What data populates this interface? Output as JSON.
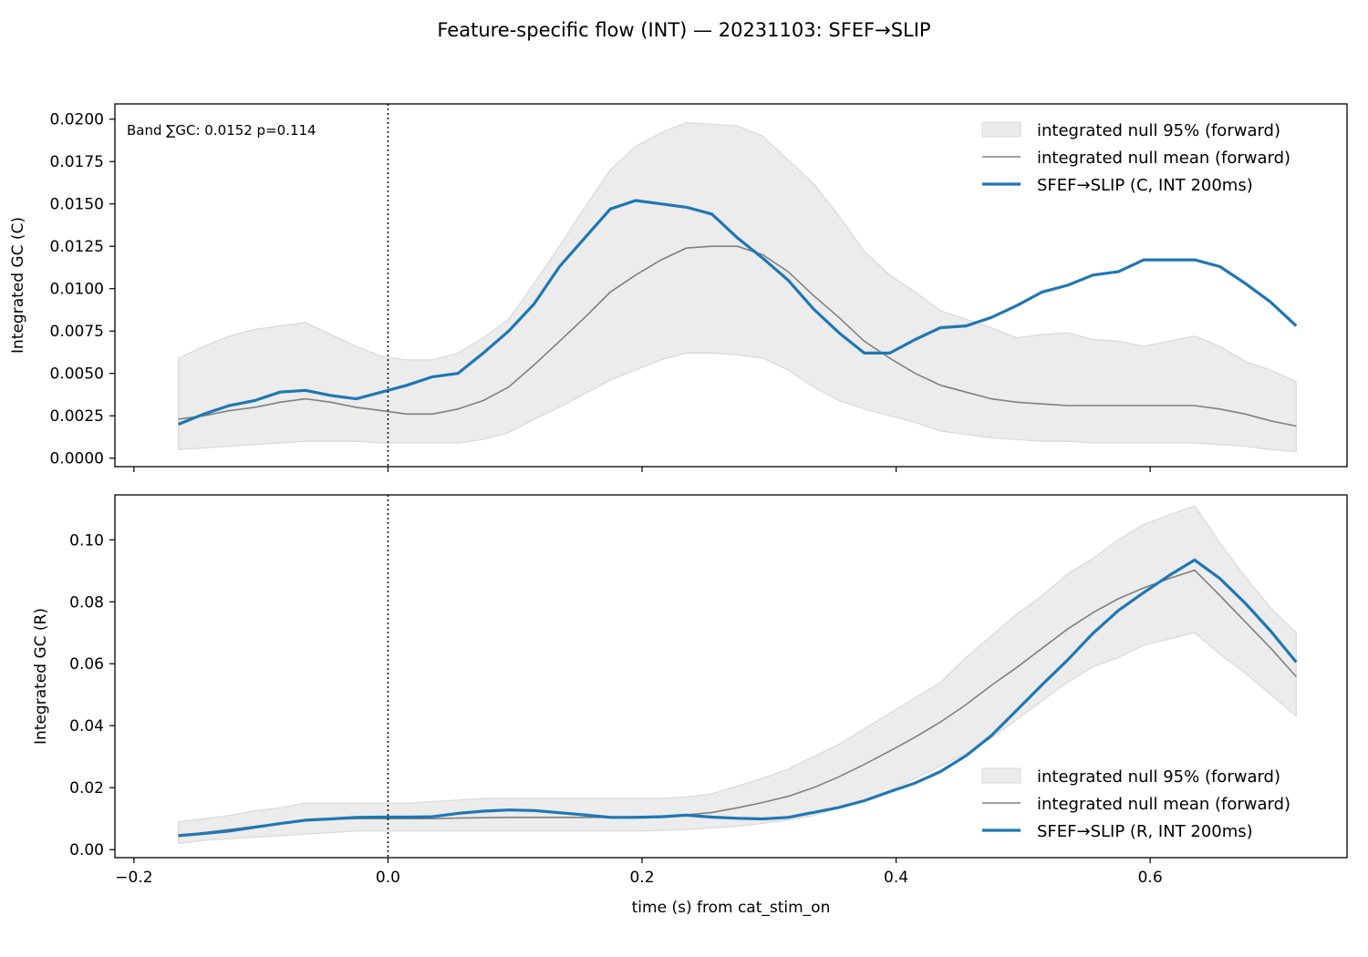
{
  "title": "Feature-specific flow (INT) — 20231103: SFEF→SLIP",
  "colors": {
    "band_fill": "#ececec",
    "band_edge": "#d9d9d9",
    "null_mean": "#808080",
    "observed": "#1f77b4"
  },
  "chart_data": [
    {
      "type": "line",
      "panel": "top",
      "ylabel": "Integrated GC (C)",
      "xlim": [
        -0.215,
        0.755
      ],
      "ylim": [
        -0.0005,
        0.0209
      ],
      "yticks": [
        0.0,
        0.0025,
        0.005,
        0.0075,
        0.01,
        0.0125,
        0.015,
        0.0175,
        0.02
      ],
      "ytick_labels": [
        "0.0000",
        "0.0025",
        "0.0050",
        "0.0075",
        "0.0100",
        "0.0125",
        "0.0150",
        "0.0175",
        "0.0200"
      ],
      "xticks": [
        -0.2,
        0.0,
        0.2,
        0.4,
        0.6
      ],
      "annotation": "Band ∑GC: 0.0152  p=0.114",
      "legend_position": "upper right",
      "legend": [
        "integrated null 95% (forward)",
        "integrated null mean (forward)",
        "SFEF→SLIP (C, INT 200ms)"
      ],
      "x": [
        -0.165,
        -0.145,
        -0.125,
        -0.105,
        -0.085,
        -0.065,
        -0.045,
        -0.025,
        -0.005,
        0.015,
        0.035,
        0.055,
        0.075,
        0.095,
        0.115,
        0.135,
        0.155,
        0.175,
        0.195,
        0.215,
        0.235,
        0.255,
        0.275,
        0.295,
        0.315,
        0.335,
        0.355,
        0.375,
        0.395,
        0.415,
        0.435,
        0.455,
        0.475,
        0.495,
        0.515,
        0.535,
        0.555,
        0.575,
        0.595,
        0.615,
        0.635,
        0.655,
        0.675,
        0.695,
        0.715
      ],
      "band_lower": [
        0.0005,
        0.0006,
        0.0007,
        0.0008,
        0.0009,
        0.001,
        0.001,
        0.001,
        0.0009,
        0.0009,
        0.0009,
        0.0009,
        0.0011,
        0.0015,
        0.0023,
        0.003,
        0.0038,
        0.0046,
        0.0052,
        0.0058,
        0.0062,
        0.0062,
        0.0061,
        0.0059,
        0.0052,
        0.0042,
        0.0034,
        0.0029,
        0.0025,
        0.0021,
        0.0016,
        0.0014,
        0.0012,
        0.0011,
        0.001,
        0.001,
        0.0009,
        0.0009,
        0.0009,
        0.0009,
        0.0009,
        0.0008,
        0.0007,
        0.0005,
        0.0004
      ],
      "band_upper": [
        0.0059,
        0.0066,
        0.0072,
        0.0076,
        0.0078,
        0.008,
        0.0073,
        0.0066,
        0.006,
        0.0058,
        0.0058,
        0.0062,
        0.0071,
        0.0082,
        0.0103,
        0.0125,
        0.0148,
        0.017,
        0.0184,
        0.0192,
        0.0198,
        0.0197,
        0.0196,
        0.019,
        0.0176,
        0.0162,
        0.0143,
        0.0122,
        0.0108,
        0.0098,
        0.0087,
        0.0082,
        0.0077,
        0.0071,
        0.0073,
        0.0074,
        0.007,
        0.0069,
        0.0066,
        0.0069,
        0.0072,
        0.0066,
        0.0057,
        0.0052,
        0.0045
      ],
      "null_mean": [
        0.0023,
        0.0025,
        0.0028,
        0.003,
        0.0033,
        0.0035,
        0.0033,
        0.003,
        0.0028,
        0.0026,
        0.0026,
        0.0029,
        0.0034,
        0.0042,
        0.0055,
        0.0069,
        0.0083,
        0.0098,
        0.0108,
        0.0117,
        0.0124,
        0.0125,
        0.0125,
        0.012,
        0.011,
        0.0096,
        0.0083,
        0.0069,
        0.0059,
        0.005,
        0.0043,
        0.0039,
        0.0035,
        0.0033,
        0.0032,
        0.0031,
        0.0031,
        0.0031,
        0.0031,
        0.0031,
        0.0031,
        0.0029,
        0.0026,
        0.0022,
        0.0019
      ],
      "series": [
        {
          "name": "SFEF→SLIP (C, INT 200ms)",
          "values": [
            0.002,
            0.0026,
            0.0031,
            0.0034,
            0.0039,
            0.004,
            0.0037,
            0.0035,
            0.0039,
            0.0043,
            0.0048,
            0.005,
            0.0062,
            0.0075,
            0.0091,
            0.0113,
            0.013,
            0.0147,
            0.0152,
            0.015,
            0.0148,
            0.0144,
            0.013,
            0.0118,
            0.0105,
            0.0088,
            0.0074,
            0.0062,
            0.0062,
            0.007,
            0.0077,
            0.0078,
            0.0083,
            0.009,
            0.0098,
            0.0102,
            0.0108,
            0.011,
            0.0117,
            0.0117,
            0.0117,
            0.0113,
            0.0103,
            0.0092,
            0.0078
          ]
        }
      ]
    },
    {
      "type": "line",
      "panel": "bottom",
      "ylabel": "Integrated GC (R)",
      "xlabel": "time (s) from cat_stim_on",
      "xlim": [
        -0.215,
        0.755
      ],
      "ylim": [
        -0.0026,
        0.1145
      ],
      "yticks": [
        0.0,
        0.02,
        0.04,
        0.06,
        0.08,
        0.1
      ],
      "ytick_labels": [
        "0.00",
        "0.02",
        "0.04",
        "0.06",
        "0.08",
        "0.10"
      ],
      "xticks": [
        -0.2,
        0.0,
        0.2,
        0.4,
        0.6
      ],
      "xtick_labels": [
        "−0.2",
        "0.0",
        "0.2",
        "0.4",
        "0.6"
      ],
      "legend_position": "lower right",
      "legend": [
        "integrated null 95% (forward)",
        "integrated null mean (forward)",
        "SFEF→SLIP (R, INT 200ms)"
      ],
      "x": [
        -0.165,
        -0.145,
        -0.125,
        -0.105,
        -0.085,
        -0.065,
        -0.045,
        -0.025,
        -0.005,
        0.015,
        0.035,
        0.055,
        0.075,
        0.095,
        0.115,
        0.135,
        0.155,
        0.175,
        0.195,
        0.215,
        0.235,
        0.255,
        0.275,
        0.295,
        0.315,
        0.335,
        0.355,
        0.375,
        0.395,
        0.415,
        0.435,
        0.455,
        0.475,
        0.495,
        0.515,
        0.535,
        0.555,
        0.575,
        0.595,
        0.615,
        0.635,
        0.655,
        0.675,
        0.695,
        0.715
      ],
      "band_lower": [
        0.002,
        0.003,
        0.0035,
        0.004,
        0.0045,
        0.005,
        0.0055,
        0.006,
        0.006,
        0.006,
        0.006,
        0.006,
        0.006,
        0.006,
        0.006,
        0.006,
        0.006,
        0.006,
        0.006,
        0.0062,
        0.0065,
        0.007,
        0.0075,
        0.0085,
        0.0095,
        0.011,
        0.0135,
        0.016,
        0.019,
        0.023,
        0.027,
        0.031,
        0.036,
        0.042,
        0.048,
        0.054,
        0.059,
        0.062,
        0.066,
        0.068,
        0.07,
        0.063,
        0.057,
        0.05,
        0.043
      ],
      "band_upper": [
        0.009,
        0.01,
        0.011,
        0.0125,
        0.0135,
        0.015,
        0.015,
        0.015,
        0.015,
        0.015,
        0.0155,
        0.016,
        0.0165,
        0.0165,
        0.0165,
        0.0165,
        0.0165,
        0.0165,
        0.0165,
        0.0165,
        0.017,
        0.018,
        0.0205,
        0.023,
        0.026,
        0.03,
        0.034,
        0.039,
        0.044,
        0.049,
        0.054,
        0.062,
        0.069,
        0.076,
        0.082,
        0.089,
        0.094,
        0.1,
        0.105,
        0.108,
        0.111,
        0.099,
        0.088,
        0.078,
        0.07
      ],
      "null_mean": [
        0.0045,
        0.0055,
        0.0065,
        0.0075,
        0.0085,
        0.0095,
        0.0098,
        0.01,
        0.01,
        0.01,
        0.01,
        0.0102,
        0.0103,
        0.0104,
        0.0104,
        0.0104,
        0.0104,
        0.0104,
        0.0106,
        0.0108,
        0.0112,
        0.012,
        0.0135,
        0.0152,
        0.0172,
        0.02,
        0.0235,
        0.0275,
        0.0318,
        0.0363,
        0.0412,
        0.0468,
        0.053,
        0.0588,
        0.065,
        0.0712,
        0.0765,
        0.081,
        0.0845,
        0.0875,
        0.0902,
        0.082,
        0.0735,
        0.065,
        0.0558
      ],
      "series": [
        {
          "name": "SFEF→SLIP (R, INT 200ms)",
          "values": [
            0.0045,
            0.0052,
            0.006,
            0.0072,
            0.0084,
            0.0095,
            0.0099,
            0.0104,
            0.0105,
            0.0105,
            0.0106,
            0.0117,
            0.0124,
            0.0128,
            0.0126,
            0.0119,
            0.0112,
            0.0104,
            0.0104,
            0.0106,
            0.0111,
            0.0105,
            0.0101,
            0.0099,
            0.0104,
            0.012,
            0.0136,
            0.0158,
            0.0187,
            0.0215,
            0.0252,
            0.0303,
            0.0368,
            0.045,
            0.0532,
            0.0612,
            0.0698,
            0.0772,
            0.083,
            0.0885,
            0.0935,
            0.0875,
            0.0795,
            0.0705,
            0.0605
          ]
        }
      ]
    }
  ]
}
